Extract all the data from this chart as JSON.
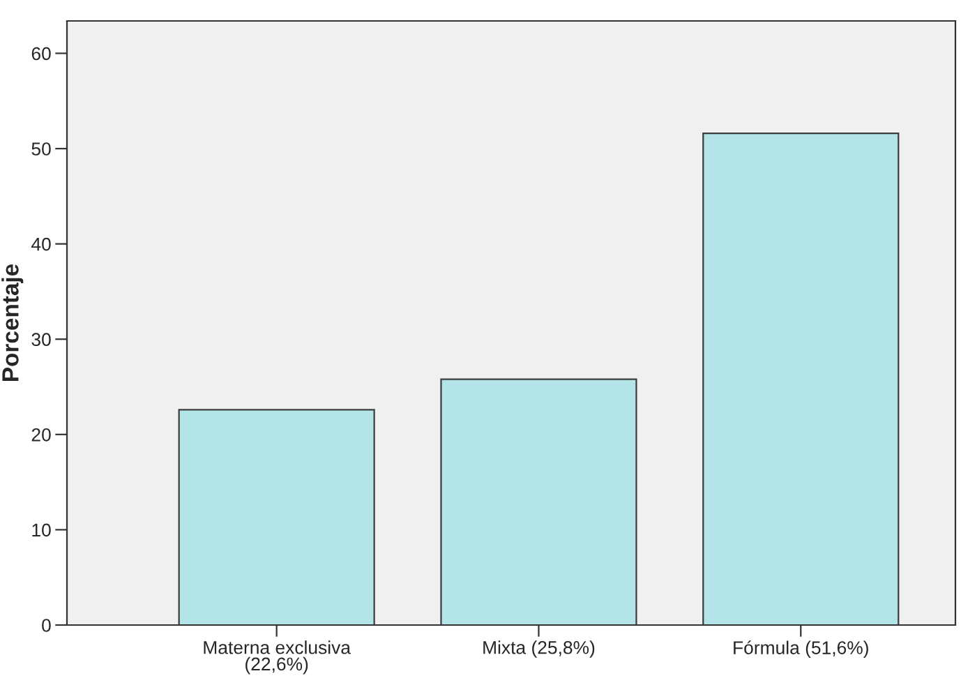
{
  "chart_data": {
    "type": "bar",
    "ylabel": "Porcentaje",
    "categories": [
      "Materna exclusiva\n(22,6%)",
      "Mixta (25,8%)",
      "Fórmula (51,6%)"
    ],
    "values": [
      22.6,
      25.8,
      51.6
    ],
    "color": "#b3e5e8",
    "ylim": [
      0,
      63.4
    ],
    "yticks": [
      0,
      10,
      20,
      30,
      40,
      50,
      60
    ],
    "grid": false
  }
}
